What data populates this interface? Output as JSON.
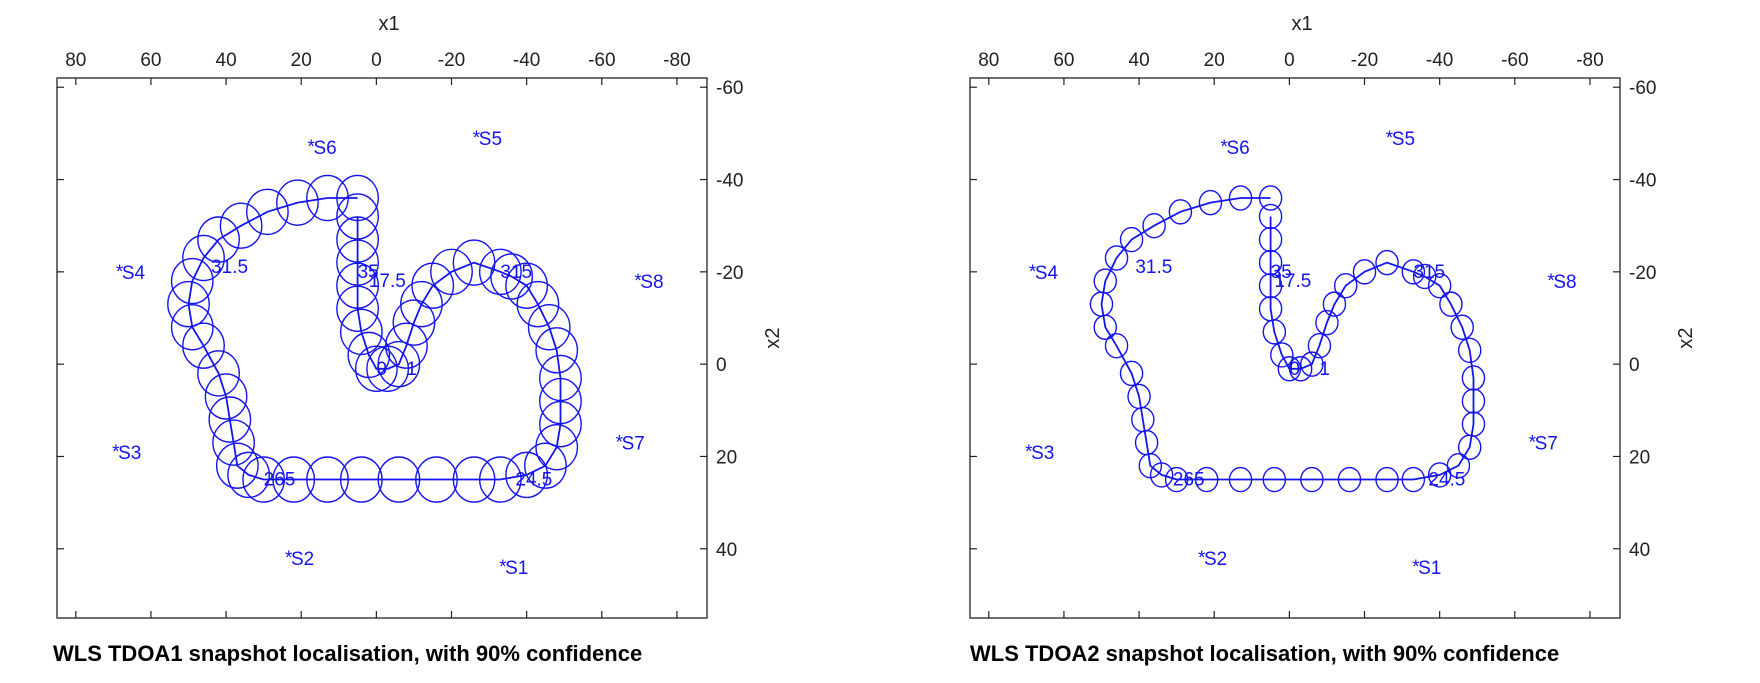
{
  "color": "#1414f0",
  "chart_data": [
    {
      "type": "scatter",
      "title": "WLS TDOA1 snapshot localisation, with 90% confidence",
      "xlabel": "x1",
      "ylabel": "x2",
      "xlim": [
        85,
        -88
      ],
      "ylim": [
        -62,
        55
      ],
      "x_reversed": true,
      "y_reversed": true,
      "xticks": [
        80,
        60,
        40,
        20,
        0,
        -20,
        -40,
        -60,
        -80
      ],
      "yticks": [
        -60,
        -40,
        -20,
        0,
        20,
        40
      ],
      "grid": false,
      "ellipse_radius": 6,
      "sensors": [
        {
          "label": "S1",
          "x1": -34,
          "x2": 44
        },
        {
          "label": "S2",
          "x1": 23,
          "x2": 42
        },
        {
          "label": "S3",
          "x1": 69,
          "x2": 19
        },
        {
          "label": "S4",
          "x1": 68,
          "x2": -20
        },
        {
          "label": "S5",
          "x1": -27,
          "x2": -49
        },
        {
          "label": "S6",
          "x1": 17,
          "x2": -47
        },
        {
          "label": "S7",
          "x1": -65,
          "x2": 17
        },
        {
          "label": "S8",
          "x1": -70,
          "x2": -18
        }
      ],
      "time_labels": [
        {
          "text": "0",
          "x1": 0,
          "x2": 1
        },
        {
          "text": "1",
          "x1": -8,
          "x2": 1
        },
        {
          "text": "35",
          "x1": 5,
          "x2": -20
        },
        {
          "text": "17.5",
          "x1": 2,
          "x2": -18
        },
        {
          "text": "315",
          "x1": -33,
          "x2": -20
        },
        {
          "text": "31.5",
          "x1": 44,
          "x2": -21
        },
        {
          "text": "265",
          "x1": 30,
          "x2": 25
        },
        {
          "text": "24.5",
          "x1": -37,
          "x2": 25
        }
      ],
      "track": [
        {
          "x1": 5,
          "x2": -36
        },
        {
          "x1": 13,
          "x2": -36
        },
        {
          "x1": 21,
          "x2": -35
        },
        {
          "x1": 29,
          "x2": -33
        },
        {
          "x1": 36,
          "x2": -30
        },
        {
          "x1": 42,
          "x2": -27
        },
        {
          "x1": 46,
          "x2": -23
        },
        {
          "x1": 49,
          "x2": -18
        },
        {
          "x1": 50,
          "x2": -13
        },
        {
          "x1": 49,
          "x2": -8
        },
        {
          "x1": 46,
          "x2": -4
        },
        {
          "x1": 42,
          "x2": 2
        },
        {
          "x1": 40,
          "x2": 7
        },
        {
          "x1": 39,
          "x2": 12
        },
        {
          "x1": 38,
          "x2": 17
        },
        {
          "x1": 37,
          "x2": 22
        },
        {
          "x1": 34,
          "x2": 24
        },
        {
          "x1": 30,
          "x2": 25
        },
        {
          "x1": 22,
          "x2": 25
        },
        {
          "x1": 13,
          "x2": 25
        },
        {
          "x1": 4,
          "x2": 25
        },
        {
          "x1": -6,
          "x2": 25
        },
        {
          "x1": -16,
          "x2": 25
        },
        {
          "x1": -26,
          "x2": 25
        },
        {
          "x1": -33,
          "x2": 25
        },
        {
          "x1": -40,
          "x2": 24
        },
        {
          "x1": -45,
          "x2": 22
        },
        {
          "x1": -48,
          "x2": 18
        },
        {
          "x1": -49,
          "x2": 13
        },
        {
          "x1": -49,
          "x2": 8
        },
        {
          "x1": -49,
          "x2": 3
        },
        {
          "x1": -48,
          "x2": -3
        },
        {
          "x1": -46,
          "x2": -8
        },
        {
          "x1": -43,
          "x2": -13
        },
        {
          "x1": -40,
          "x2": -17
        },
        {
          "x1": -36,
          "x2": -19
        },
        {
          "x1": -33,
          "x2": -20
        },
        {
          "x1": -26,
          "x2": -22
        },
        {
          "x1": -20,
          "x2": -20
        },
        {
          "x1": -15,
          "x2": -17
        },
        {
          "x1": -12,
          "x2": -13
        },
        {
          "x1": -10,
          "x2": -9
        },
        {
          "x1": -8,
          "x2": -4
        },
        {
          "x1": -6,
          "x2": 0
        },
        {
          "x1": -3,
          "x2": 1
        },
        {
          "x1": 0,
          "x2": 1
        },
        {
          "x1": 2,
          "x2": -2
        },
        {
          "x1": 4,
          "x2": -7
        },
        {
          "x1": 5,
          "x2": -12
        },
        {
          "x1": 5,
          "x2": -17
        },
        {
          "x1": 5,
          "x2": -22
        },
        {
          "x1": 5,
          "x2": -27
        },
        {
          "x1": 5,
          "x2": -32
        }
      ]
    },
    {
      "type": "scatter",
      "title": "WLS TDOA2 snapshot localisation, with 90% confidence",
      "xlabel": "x1",
      "ylabel": "x2",
      "xlim": [
        85,
        -88
      ],
      "ylim": [
        -62,
        55
      ],
      "x_reversed": true,
      "y_reversed": true,
      "xticks": [
        80,
        60,
        40,
        20,
        0,
        -20,
        -40,
        -60,
        -80
      ],
      "yticks": [
        -60,
        -40,
        -20,
        0,
        20,
        40
      ],
      "grid": false,
      "ellipse_radius": 3.2,
      "sensors": [
        {
          "label": "S1",
          "x1": -34,
          "x2": 44
        },
        {
          "label": "S2",
          "x1": 23,
          "x2": 42
        },
        {
          "label": "S3",
          "x1": 69,
          "x2": 19
        },
        {
          "label": "S4",
          "x1": 68,
          "x2": -20
        },
        {
          "label": "S5",
          "x1": -27,
          "x2": -49
        },
        {
          "label": "S6",
          "x1": 17,
          "x2": -47
        },
        {
          "label": "S7",
          "x1": -65,
          "x2": 17
        },
        {
          "label": "S8",
          "x1": -70,
          "x2": -18
        }
      ],
      "time_labels": [
        {
          "text": "0",
          "x1": 0,
          "x2": 1
        },
        {
          "text": "1",
          "x1": -8,
          "x2": 1
        },
        {
          "text": "35",
          "x1": 5,
          "x2": -20
        },
        {
          "text": "17.5",
          "x1": 4,
          "x2": -18
        },
        {
          "text": "315",
          "x1": -33,
          "x2": -20
        },
        {
          "text": "31.5",
          "x1": 41,
          "x2": -21
        },
        {
          "text": "265",
          "x1": 31,
          "x2": 25
        },
        {
          "text": "24.5",
          "x1": -37,
          "x2": 25
        }
      ],
      "track": [
        {
          "x1": 5,
          "x2": -36
        },
        {
          "x1": 13,
          "x2": -36
        },
        {
          "x1": 21,
          "x2": -35
        },
        {
          "x1": 29,
          "x2": -33
        },
        {
          "x1": 36,
          "x2": -30
        },
        {
          "x1": 42,
          "x2": -27
        },
        {
          "x1": 46,
          "x2": -23
        },
        {
          "x1": 49,
          "x2": -18
        },
        {
          "x1": 50,
          "x2": -13
        },
        {
          "x1": 49,
          "x2": -8
        },
        {
          "x1": 46,
          "x2": -4
        },
        {
          "x1": 42,
          "x2": 2
        },
        {
          "x1": 40,
          "x2": 7
        },
        {
          "x1": 39,
          "x2": 12
        },
        {
          "x1": 38,
          "x2": 17
        },
        {
          "x1": 37,
          "x2": 22
        },
        {
          "x1": 34,
          "x2": 24
        },
        {
          "x1": 30,
          "x2": 25
        },
        {
          "x1": 22,
          "x2": 25
        },
        {
          "x1": 13,
          "x2": 25
        },
        {
          "x1": 4,
          "x2": 25
        },
        {
          "x1": -6,
          "x2": 25
        },
        {
          "x1": -16,
          "x2": 25
        },
        {
          "x1": -26,
          "x2": 25
        },
        {
          "x1": -33,
          "x2": 25
        },
        {
          "x1": -40,
          "x2": 24
        },
        {
          "x1": -45,
          "x2": 22
        },
        {
          "x1": -48,
          "x2": 18
        },
        {
          "x1": -49,
          "x2": 13
        },
        {
          "x1": -49,
          "x2": 8
        },
        {
          "x1": -49,
          "x2": 3
        },
        {
          "x1": -48,
          "x2": -3
        },
        {
          "x1": -46,
          "x2": -8
        },
        {
          "x1": -43,
          "x2": -13
        },
        {
          "x1": -40,
          "x2": -17
        },
        {
          "x1": -36,
          "x2": -19
        },
        {
          "x1": -33,
          "x2": -20
        },
        {
          "x1": -26,
          "x2": -22
        },
        {
          "x1": -20,
          "x2": -20
        },
        {
          "x1": -15,
          "x2": -17
        },
        {
          "x1": -12,
          "x2": -13
        },
        {
          "x1": -10,
          "x2": -9
        },
        {
          "x1": -8,
          "x2": -4
        },
        {
          "x1": -6,
          "x2": 0
        },
        {
          "x1": -3,
          "x2": 1
        },
        {
          "x1": 0,
          "x2": 1
        },
        {
          "x1": 2,
          "x2": -2
        },
        {
          "x1": 4,
          "x2": -7
        },
        {
          "x1": 5,
          "x2": -12
        },
        {
          "x1": 5,
          "x2": -17
        },
        {
          "x1": 5,
          "x2": -22
        },
        {
          "x1": 5,
          "x2": -27
        },
        {
          "x1": 5,
          "x2": -32
        }
      ]
    }
  ]
}
